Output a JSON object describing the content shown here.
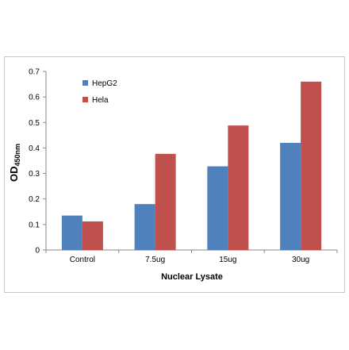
{
  "chart_data": {
    "type": "bar",
    "categories": [
      "Control",
      "7.5ug",
      "15ug",
      "30ug"
    ],
    "series": [
      {
        "name": "HepG2",
        "color": "#4f81bd",
        "values": [
          0.135,
          0.18,
          0.328,
          0.42
        ]
      },
      {
        "name": "Hela",
        "color": "#c0504d",
        "values": [
          0.112,
          0.377,
          0.488,
          0.66
        ]
      }
    ],
    "title": "",
    "xlabel": "Nuclear Lysate",
    "ylabel": "OD",
    "ylabel_subscript": "450nm",
    "ylim": [
      0,
      0.7
    ],
    "yticks": [
      "0",
      "0.1",
      "0.2",
      "0.3",
      "0.4",
      "0.5",
      "0.6",
      "0.7"
    ],
    "legend_position": "top-left",
    "grid": false
  }
}
